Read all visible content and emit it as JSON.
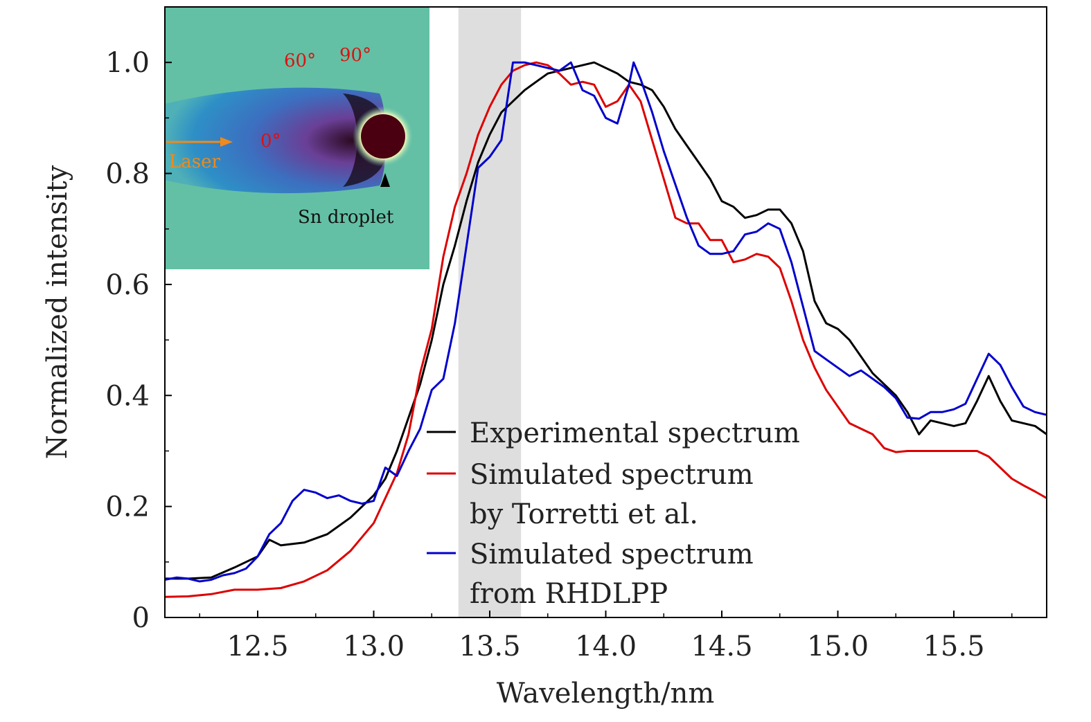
{
  "chart_data": {
    "type": "line",
    "xlabel": "Wavelength/nm",
    "ylabel": "Normalized intensity",
    "xlim": [
      12.1,
      15.9
    ],
    "ylim": [
      0,
      1.1
    ],
    "x_ticks": [
      "12.5",
      "13.0",
      "13.5",
      "14.0",
      "14.5",
      "15.0",
      "15.5"
    ],
    "y_ticks": [
      "0",
      "0.2",
      "0.4",
      "0.6",
      "0.8",
      "1.0"
    ],
    "shaded_band": [
      13.365,
      13.635
    ],
    "grid": false,
    "legend_position": "lower-middle",
    "series": [
      {
        "name": "Experimental spectrum",
        "color": "#000000",
        "points": [
          [
            12.1,
            0.07
          ],
          [
            12.2,
            0.07
          ],
          [
            12.3,
            0.072
          ],
          [
            12.4,
            0.09
          ],
          [
            12.5,
            0.11
          ],
          [
            12.55,
            0.14
          ],
          [
            12.6,
            0.13
          ],
          [
            12.7,
            0.135
          ],
          [
            12.8,
            0.15
          ],
          [
            12.9,
            0.18
          ],
          [
            13.0,
            0.22
          ],
          [
            13.05,
            0.25
          ],
          [
            13.1,
            0.3
          ],
          [
            13.15,
            0.36
          ],
          [
            13.2,
            0.42
          ],
          [
            13.25,
            0.5
          ],
          [
            13.3,
            0.6
          ],
          [
            13.35,
            0.67
          ],
          [
            13.4,
            0.75
          ],
          [
            13.45,
            0.82
          ],
          [
            13.5,
            0.87
          ],
          [
            13.55,
            0.91
          ],
          [
            13.6,
            0.93
          ],
          [
            13.65,
            0.95
          ],
          [
            13.7,
            0.965
          ],
          [
            13.75,
            0.98
          ],
          [
            13.8,
            0.985
          ],
          [
            13.85,
            0.99
          ],
          [
            13.9,
            0.995
          ],
          [
            13.95,
            1.0
          ],
          [
            14.0,
            0.99
          ],
          [
            14.05,
            0.98
          ],
          [
            14.1,
            0.965
          ],
          [
            14.15,
            0.96
          ],
          [
            14.2,
            0.95
          ],
          [
            14.25,
            0.92
          ],
          [
            14.3,
            0.88
          ],
          [
            14.35,
            0.85
          ],
          [
            14.4,
            0.82
          ],
          [
            14.45,
            0.79
          ],
          [
            14.5,
            0.75
          ],
          [
            14.55,
            0.74
          ],
          [
            14.6,
            0.72
          ],
          [
            14.65,
            0.725
          ],
          [
            14.7,
            0.735
          ],
          [
            14.75,
            0.735
          ],
          [
            14.8,
            0.71
          ],
          [
            14.85,
            0.66
          ],
          [
            14.9,
            0.57
          ],
          [
            14.95,
            0.53
          ],
          [
            15.0,
            0.52
          ],
          [
            15.05,
            0.5
          ],
          [
            15.1,
            0.47
          ],
          [
            15.15,
            0.44
          ],
          [
            15.2,
            0.42
          ],
          [
            15.25,
            0.4
          ],
          [
            15.3,
            0.37
          ],
          [
            15.35,
            0.33
          ],
          [
            15.4,
            0.355
          ],
          [
            15.45,
            0.35
          ],
          [
            15.5,
            0.345
          ],
          [
            15.55,
            0.35
          ],
          [
            15.6,
            0.39
          ],
          [
            15.65,
            0.435
          ],
          [
            15.7,
            0.39
          ],
          [
            15.75,
            0.355
          ],
          [
            15.8,
            0.35
          ],
          [
            15.85,
            0.345
          ],
          [
            15.9,
            0.33
          ]
        ]
      },
      {
        "name": "Simulated spectrum\nby Torretti et al.",
        "color": "#dd0000",
        "points": [
          [
            12.1,
            0.037
          ],
          [
            12.2,
            0.038
          ],
          [
            12.3,
            0.042
          ],
          [
            12.4,
            0.05
          ],
          [
            12.5,
            0.05
          ],
          [
            12.6,
            0.053
          ],
          [
            12.7,
            0.065
          ],
          [
            12.8,
            0.085
          ],
          [
            12.9,
            0.12
          ],
          [
            13.0,
            0.17
          ],
          [
            13.1,
            0.26
          ],
          [
            13.15,
            0.33
          ],
          [
            13.2,
            0.44
          ],
          [
            13.25,
            0.52
          ],
          [
            13.3,
            0.65
          ],
          [
            13.35,
            0.74
          ],
          [
            13.4,
            0.8
          ],
          [
            13.45,
            0.87
          ],
          [
            13.5,
            0.92
          ],
          [
            13.55,
            0.96
          ],
          [
            13.6,
            0.985
          ],
          [
            13.65,
            0.995
          ],
          [
            13.7,
            1.0
          ],
          [
            13.75,
            0.995
          ],
          [
            13.8,
            0.98
          ],
          [
            13.85,
            0.96
          ],
          [
            13.9,
            0.965
          ],
          [
            13.95,
            0.96
          ],
          [
            14.0,
            0.92
          ],
          [
            14.05,
            0.93
          ],
          [
            14.1,
            0.96
          ],
          [
            14.15,
            0.93
          ],
          [
            14.2,
            0.86
          ],
          [
            14.25,
            0.79
          ],
          [
            14.3,
            0.72
          ],
          [
            14.35,
            0.71
          ],
          [
            14.4,
            0.71
          ],
          [
            14.45,
            0.68
          ],
          [
            14.5,
            0.68
          ],
          [
            14.55,
            0.64
          ],
          [
            14.6,
            0.645
          ],
          [
            14.65,
            0.655
          ],
          [
            14.7,
            0.65
          ],
          [
            14.75,
            0.63
          ],
          [
            14.8,
            0.57
          ],
          [
            14.85,
            0.5
          ],
          [
            14.9,
            0.45
          ],
          [
            14.95,
            0.41
          ],
          [
            15.0,
            0.38
          ],
          [
            15.05,
            0.35
          ],
          [
            15.1,
            0.34
          ],
          [
            15.15,
            0.33
          ],
          [
            15.2,
            0.305
          ],
          [
            15.25,
            0.298
          ],
          [
            15.3,
            0.3
          ],
          [
            15.4,
            0.3
          ],
          [
            15.5,
            0.3
          ],
          [
            15.6,
            0.3
          ],
          [
            15.65,
            0.29
          ],
          [
            15.7,
            0.27
          ],
          [
            15.75,
            0.25
          ],
          [
            15.8,
            0.238
          ],
          [
            15.85,
            0.227
          ],
          [
            15.9,
            0.215
          ]
        ]
      },
      {
        "name": "Simulated spectrum\nfrom RHDLPP",
        "color": "#0000cc",
        "points": [
          [
            12.1,
            0.068
          ],
          [
            12.15,
            0.072
          ],
          [
            12.2,
            0.07
          ],
          [
            12.25,
            0.065
          ],
          [
            12.3,
            0.068
          ],
          [
            12.35,
            0.076
          ],
          [
            12.4,
            0.08
          ],
          [
            12.45,
            0.088
          ],
          [
            12.5,
            0.11
          ],
          [
            12.55,
            0.15
          ],
          [
            12.6,
            0.17
          ],
          [
            12.65,
            0.21
          ],
          [
            12.7,
            0.23
          ],
          [
            12.75,
            0.225
          ],
          [
            12.8,
            0.215
          ],
          [
            12.85,
            0.22
          ],
          [
            12.9,
            0.21
          ],
          [
            12.95,
            0.205
          ],
          [
            13.0,
            0.21
          ],
          [
            13.05,
            0.27
          ],
          [
            13.1,
            0.255
          ],
          [
            13.15,
            0.3
          ],
          [
            13.2,
            0.34
          ],
          [
            13.25,
            0.41
          ],
          [
            13.3,
            0.43
          ],
          [
            13.35,
            0.53
          ],
          [
            13.4,
            0.67
          ],
          [
            13.45,
            0.81
          ],
          [
            13.5,
            0.83
          ],
          [
            13.55,
            0.86
          ],
          [
            13.6,
            1.0
          ],
          [
            13.65,
            1.0
          ],
          [
            13.7,
            0.995
          ],
          [
            13.75,
            0.99
          ],
          [
            13.8,
            0.985
          ],
          [
            13.85,
            1.0
          ],
          [
            13.9,
            0.95
          ],
          [
            13.95,
            0.94
          ],
          [
            14.0,
            0.9
          ],
          [
            14.05,
            0.89
          ],
          [
            14.1,
            0.96
          ],
          [
            14.12,
            1.0
          ],
          [
            14.15,
            0.97
          ],
          [
            14.2,
            0.91
          ],
          [
            14.25,
            0.84
          ],
          [
            14.3,
            0.78
          ],
          [
            14.35,
            0.72
          ],
          [
            14.4,
            0.67
          ],
          [
            14.45,
            0.655
          ],
          [
            14.5,
            0.655
          ],
          [
            14.55,
            0.66
          ],
          [
            14.6,
            0.69
          ],
          [
            14.65,
            0.695
          ],
          [
            14.7,
            0.71
          ],
          [
            14.75,
            0.7
          ],
          [
            14.8,
            0.64
          ],
          [
            14.85,
            0.56
          ],
          [
            14.9,
            0.48
          ],
          [
            14.95,
            0.465
          ],
          [
            15.0,
            0.45
          ],
          [
            15.05,
            0.435
          ],
          [
            15.1,
            0.445
          ],
          [
            15.15,
            0.43
          ],
          [
            15.2,
            0.415
          ],
          [
            15.25,
            0.395
          ],
          [
            15.3,
            0.36
          ],
          [
            15.35,
            0.358
          ],
          [
            15.4,
            0.37
          ],
          [
            15.45,
            0.37
          ],
          [
            15.5,
            0.375
          ],
          [
            15.55,
            0.385
          ],
          [
            15.6,
            0.43
          ],
          [
            15.65,
            0.475
          ],
          [
            15.7,
            0.455
          ],
          [
            15.75,
            0.415
          ],
          [
            15.8,
            0.38
          ],
          [
            15.85,
            0.37
          ],
          [
            15.9,
            0.365
          ]
        ]
      }
    ]
  },
  "inset": {
    "labels": {
      "angle_60": "60°",
      "angle_90": "90°",
      "angle_0": "0°",
      "laser": "Laser",
      "droplet": "Sn droplet"
    },
    "colors": {
      "background": "#63c0a5",
      "plasma_blue": "#2e7fc6",
      "plasma_purple": "#6a3f96",
      "droplet": "#4a0010",
      "glow": "#ffffbf",
      "label_red": "#dd1111",
      "laser_orange": "#f08a1a"
    }
  },
  "band_color": "#dedede"
}
